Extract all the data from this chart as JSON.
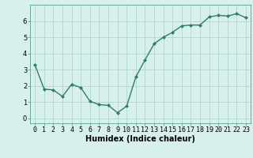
{
  "x": [
    0,
    1,
    2,
    3,
    4,
    5,
    6,
    7,
    8,
    9,
    10,
    11,
    12,
    13,
    14,
    15,
    16,
    17,
    18,
    19,
    20,
    21,
    22,
    23
  ],
  "y": [
    3.3,
    1.8,
    1.75,
    1.35,
    2.1,
    1.9,
    1.05,
    0.85,
    0.8,
    0.35,
    0.75,
    2.55,
    3.6,
    4.6,
    5.0,
    5.3,
    5.7,
    5.75,
    5.75,
    6.25,
    6.35,
    6.3,
    6.45,
    6.2
  ],
  "line_color": "#2e7d6e",
  "marker": "D",
  "marker_size": 2.0,
  "bg_color": "#d8f0ec",
  "grid_color": "#b5d9d4",
  "xlabel": "Humidex (Indice chaleur)",
  "xlim": [
    -0.5,
    23.5
  ],
  "ylim": [
    -0.3,
    7.0
  ],
  "yticks": [
    0,
    1,
    2,
    3,
    4,
    5,
    6
  ],
  "xticks": [
    0,
    1,
    2,
    3,
    4,
    5,
    6,
    7,
    8,
    9,
    10,
    11,
    12,
    13,
    14,
    15,
    16,
    17,
    18,
    19,
    20,
    21,
    22,
    23
  ],
  "xlabel_fontsize": 7,
  "tick_fontsize": 6,
  "line_width": 1.0
}
